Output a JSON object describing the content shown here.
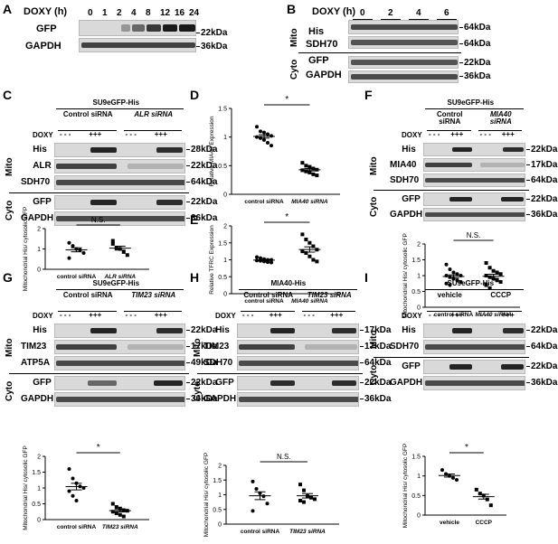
{
  "panels": {
    "A": "A",
    "B": "B",
    "C": "C",
    "D": "D",
    "E": "E",
    "F": "F",
    "G": "G",
    "H": "H",
    "I": "I"
  },
  "common": {
    "doxy": "DOXY",
    "doxy_h": "DOXY (h)",
    "mito": "Mito",
    "cyto": "Cyto",
    "his": "His",
    "gfp": "GFP",
    "gapdh": "GAPDH",
    "sdh70": "SDH70",
    "plus": "+++",
    "minus": "- - -",
    "control_sirna": "Control siRNA",
    "ns": "N.S.",
    "star": "*",
    "ratio_ylabel": "Mitochondrial His/ cytosolic GFP"
  },
  "A": {
    "timepoints": [
      "0",
      "1",
      "2",
      "4",
      "8",
      "12",
      "16",
      "24"
    ],
    "mw": [
      "22kDa",
      "36kDa"
    ],
    "rows": [
      "GFP",
      "GAPDH"
    ]
  },
  "B": {
    "timepoints": [
      "0",
      "2",
      "4",
      "6"
    ],
    "mw": [
      "64kDa",
      "64kDa",
      "22kDa",
      "36kDa"
    ],
    "rows": [
      "His",
      "SDH70",
      "GFP",
      "GAPDH"
    ]
  },
  "C": {
    "title": "SU9eGFP-His",
    "groups": [
      "Control siRNA",
      "ALR siRNA"
    ],
    "rows": [
      "His",
      "ALR",
      "SDH70",
      "GFP",
      "GAPDH"
    ],
    "mw": [
      "28kDa",
      "22kDa",
      "64kDa",
      "22kDa",
      "36kDa"
    ],
    "x": [
      "control siRNA",
      "ALR siRNA"
    ]
  },
  "D": {
    "ylabel": "Relative MIA40 Expression",
    "x": [
      "control siRNA",
      "MIA40 siRNA"
    ]
  },
  "E": {
    "ylabel": "Relative TFRC Expression",
    "x": [
      "control siRNA",
      "MIA40 siRNA"
    ]
  },
  "F": {
    "title": "SU9eGFP-His",
    "groups": [
      "Control siRNA",
      "MIA40 siRNA"
    ],
    "rows": [
      "His",
      "MIA40",
      "SDH70",
      "GFP",
      "GAPDH"
    ],
    "mw": [
      "22kDa",
      "17kDa",
      "64kDa",
      "22kDa",
      "36kDa"
    ],
    "x": [
      "control siRNA",
      "MIA40 siRNA"
    ]
  },
  "G": {
    "title": "SU9eGFP-His",
    "groups": [
      "Control siRNA",
      "TIM23 siRNA"
    ],
    "rows": [
      "His",
      "TIM23",
      "ATP5A",
      "GFP",
      "GAPDH"
    ],
    "mw": [
      "22kDa",
      "17kDa",
      "49kDa",
      "22kDa",
      "36kDa"
    ],
    "x": [
      "control siRNA",
      "TIM23 siRNA"
    ]
  },
  "H": {
    "title": "MIA40-His",
    "groups": [
      "Control siRNA",
      "TIM23 siRNA"
    ],
    "rows": [
      "His",
      "TIM23",
      "SDH70",
      "GFP",
      "GAPDH"
    ],
    "mw": [
      "17kDa",
      "17kDa",
      "64kDa",
      "22kDa",
      "36kDa"
    ],
    "x": [
      "control siRNA",
      "TIM23 siRNA"
    ]
  },
  "I": {
    "title": "SU9eGFP-His",
    "groups": [
      "vehicle",
      "CCCP"
    ],
    "rows": [
      "His",
      "SDH70",
      "GFP",
      "GAPDH"
    ],
    "mw": [
      "22kDa",
      "64kDa",
      "22kDa",
      "36kDa"
    ],
    "x": [
      "vehicle",
      "CCCP"
    ]
  },
  "chart_data": [
    {
      "panel": "C",
      "type": "scatter",
      "ylabel": "Mitochondrial His/ cytosolic GFP",
      "ylim": [
        0,
        2
      ],
      "yticks": [
        0,
        1,
        2
      ],
      "categories": [
        "control siRNA",
        "ALR siRNA"
      ],
      "series": [
        {
          "values": [
            [
              1.3,
              1.15,
              1.0,
              0.95,
              0.8,
              0.55
            ],
            [
              1.4,
              1.05,
              1.0,
              0.85,
              0.7,
              1.25
            ]
          ]
        }
      ],
      "annotation": "N.S."
    },
    {
      "panel": "D",
      "type": "scatter",
      "ylabel": "Relative MIA40 Expression",
      "ylim": [
        0,
        1.5
      ],
      "yticks": [
        0,
        0.5,
        1,
        1.5
      ],
      "categories": [
        "control siRNA",
        "MIA40 siRNA"
      ],
      "series": [
        {
          "values": [
            [
              1.18,
              1.1,
              1.08,
              1.05,
              1.02,
              1.0,
              0.98,
              0.95,
              0.9,
              0.85
            ],
            [
              0.55,
              0.5,
              0.48,
              0.45,
              0.43,
              0.42,
              0.4,
              0.38,
              0.35,
              0.33
            ]
          ]
        }
      ],
      "annotation": "*"
    },
    {
      "panel": "E",
      "type": "scatter",
      "ylabel": "Relative TFRC Expression",
      "ylim": [
        0,
        2
      ],
      "yticks": [
        0,
        0.5,
        1,
        1.5,
        2
      ],
      "categories": [
        "control siRNA",
        "MIA40 siRNA"
      ],
      "series": [
        {
          "values": [
            [
              1.08,
              1.05,
              1.02,
              1.0,
              1.0,
              0.98,
              0.97,
              0.95,
              0.93,
              0.92
            ],
            [
              1.75,
              1.6,
              1.5,
              1.4,
              1.3,
              1.25,
              1.2,
              1.1,
              1.0,
              0.95
            ]
          ]
        }
      ],
      "annotation": "*"
    },
    {
      "panel": "F",
      "type": "scatter",
      "ylabel": "Mitochondrial His/ cytosolic GFP",
      "ylim": [
        0,
        2
      ],
      "yticks": [
        0,
        0.5,
        1,
        1.5,
        2
      ],
      "categories": [
        "control siRNA",
        "MIA40 siRNA"
      ],
      "series": [
        {
          "values": [
            [
              1.35,
              1.2,
              1.1,
              1.05,
              1.0,
              1.0,
              0.95,
              0.9,
              0.85,
              0.8,
              0.75,
              0.7
            ],
            [
              1.4,
              1.25,
              1.15,
              1.1,
              1.05,
              1.0,
              0.95,
              0.9,
              0.85,
              0.8,
              0.7,
              0.6
            ]
          ]
        }
      ],
      "annotation": "N.S."
    },
    {
      "panel": "G",
      "type": "scatter",
      "ylabel": "Mitochondrial His/ cytosolic GFP",
      "ylim": [
        0,
        2
      ],
      "yticks": [
        0,
        0.5,
        1,
        1.5,
        2
      ],
      "categories": [
        "control siRNA",
        "TIM23 siRNA"
      ],
      "series": [
        {
          "values": [
            [
              1.6,
              1.3,
              1.15,
              1.05,
              1.0,
              0.9,
              0.75,
              0.6
            ],
            [
              0.5,
              0.4,
              0.35,
              0.3,
              0.28,
              0.25,
              0.2,
              0.15,
              0.1
            ]
          ]
        }
      ],
      "annotation": "*"
    },
    {
      "panel": "H",
      "type": "scatter",
      "ylabel": "Mitochondrial His/ cytosolic GFP",
      "ylim": [
        0,
        2
      ],
      "yticks": [
        0,
        0.5,
        1,
        1.5,
        2
      ],
      "categories": [
        "control siRNA",
        "TIM23 siRNA"
      ],
      "series": [
        {
          "values": [
            [
              1.45,
              1.2,
              1.05,
              0.95,
              0.7,
              0.45
            ],
            [
              1.35,
              1.15,
              0.95,
              0.9,
              0.85,
              0.8,
              0.75
            ]
          ]
        }
      ],
      "annotation": "N.S."
    },
    {
      "panel": "I",
      "type": "scatter",
      "ylabel": "Mitochondrial His/ cytosolic GFP",
      "ylim": [
        0,
        1.5
      ],
      "yticks": [
        0,
        0.5,
        1,
        1.5
      ],
      "categories": [
        "vehicle",
        "CCCP"
      ],
      "series": [
        {
          "values": [
            [
              1.15,
              1.05,
              1.0,
              0.95,
              0.9
            ],
            [
              0.65,
              0.55,
              0.5,
              0.4,
              0.25
            ]
          ]
        }
      ],
      "annotation": "*"
    }
  ]
}
